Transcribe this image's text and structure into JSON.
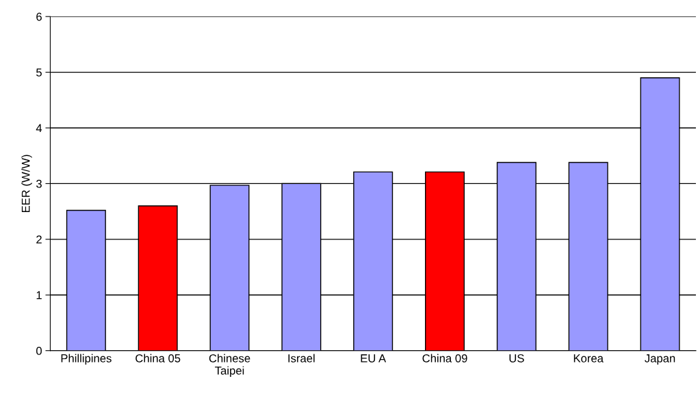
{
  "chart_data": {
    "type": "bar",
    "ylabel": "EER (W/W)",
    "categories": [
      "Phillipines",
      "China 05",
      "Chinese\nTaipei",
      "Israel",
      "EU A",
      "China 09",
      "US",
      "Korea",
      "Japan"
    ],
    "values": [
      2.52,
      2.6,
      2.97,
      3.0,
      3.21,
      3.21,
      3.38,
      3.38,
      4.9
    ],
    "colors": [
      "#9999ff",
      "#ff0000",
      "#9999ff",
      "#9999ff",
      "#9999ff",
      "#ff0000",
      "#9999ff",
      "#9999ff",
      "#9999ff"
    ],
    "ylim": [
      0,
      6
    ],
    "yticks": [
      0,
      1,
      2,
      3,
      4,
      5,
      6
    ],
    "grid": "y",
    "legend": false
  }
}
